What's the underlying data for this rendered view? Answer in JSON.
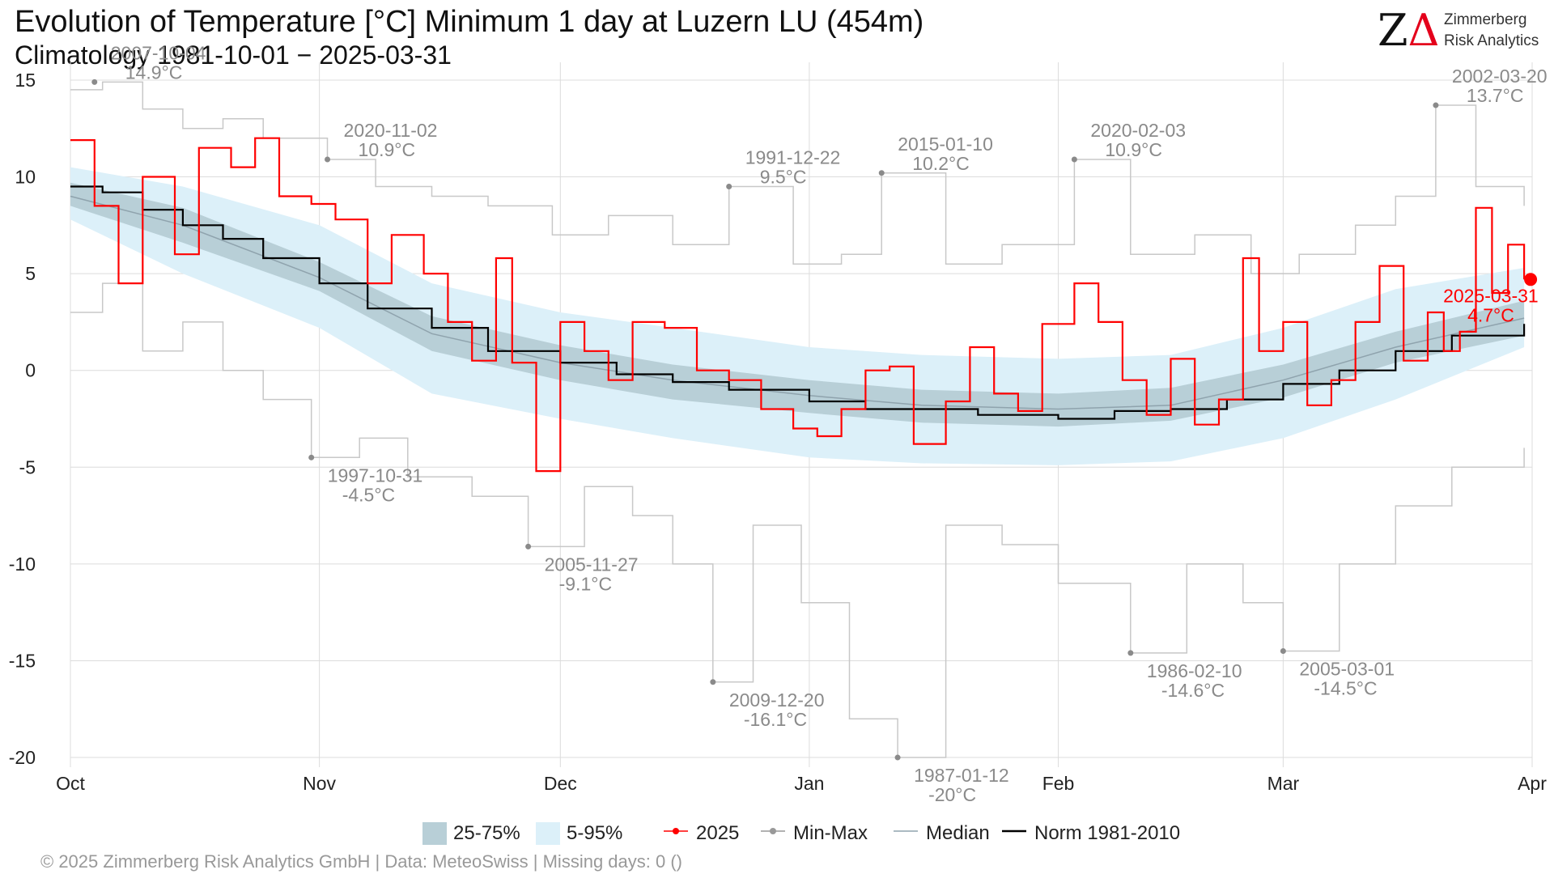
{
  "header": {
    "title": "Evolution of Temperature [°C] Minimum 1 day at Luzern  LU (454m)",
    "subtitle": "Climatology 1981-10-01 − 2025-03-31"
  },
  "logo": {
    "mark_z": "Z",
    "mark_delta": "Δ",
    "line1": "Zimmerberg",
    "line2": "Risk Analytics"
  },
  "footer": "©  2025 Zimmerberg Risk Analytics GmbH | Data: MeteoSwiss | Missing days: 0 ()",
  "colors": {
    "band_25_75": "#b8cfd7",
    "band_5_95": "#dcf0f9",
    "series_2025": "#ff0000",
    "minmax": "#c8c8c8",
    "median": "#8fa3ad",
    "norm": "#000000",
    "grid": "#dcdcdc"
  },
  "chart_data": {
    "type": "line",
    "x_axis": {
      "type": "date",
      "range": [
        "2024-10-01",
        "2025-04-01"
      ],
      "tick_dates": [
        "2024-10-01",
        "2024-11-01",
        "2024-12-01",
        "2025-01-01",
        "2025-02-01",
        "2025-03-01",
        "2025-04-01"
      ],
      "tick_labels": [
        "Oct",
        "Nov",
        "Dec",
        "Jan",
        "Feb",
        "Mar",
        "Apr"
      ]
    },
    "y_axis": {
      "range": [
        -20.5,
        15.5
      ],
      "ticks": [
        -20,
        -15,
        -10,
        -5,
        0,
        5,
        10,
        15
      ],
      "tick_labels": [
        "-20",
        "-15",
        "-10",
        "-5",
        "0",
        "5",
        "10",
        "15"
      ]
    },
    "grid": true,
    "legend_position": "bottom",
    "legend": [
      "25-75%",
      "5-95%",
      "2025",
      "Min-Max",
      "Median",
      "Norm 1981-2010"
    ],
    "series": {
      "current": {
        "name": "2025",
        "x": [
          "2024-10-01",
          "2024-10-04",
          "2024-10-07",
          "2024-10-10",
          "2024-10-14",
          "2024-10-17",
          "2024-10-21",
          "2024-10-24",
          "2024-10-27",
          "2024-10-31",
          "2024-11-03",
          "2024-11-07",
          "2024-11-10",
          "2024-11-14",
          "2024-11-17",
          "2024-11-20",
          "2024-11-23",
          "2024-11-25",
          "2024-11-28",
          "2024-12-01",
          "2024-12-04",
          "2024-12-07",
          "2024-12-10",
          "2024-12-14",
          "2024-12-18",
          "2024-12-22",
          "2024-12-26",
          "2024-12-30",
          "2025-01-02",
          "2025-01-05",
          "2025-01-08",
          "2025-01-11",
          "2025-01-14",
          "2025-01-18",
          "2025-01-21",
          "2025-01-24",
          "2025-01-27",
          "2025-01-30",
          "2025-02-03",
          "2025-02-06",
          "2025-02-09",
          "2025-02-12",
          "2025-02-15",
          "2025-02-18",
          "2025-02-21",
          "2025-02-24",
          "2025-02-26",
          "2025-03-01",
          "2025-03-04",
          "2025-03-07",
          "2025-03-10",
          "2025-03-13",
          "2025-03-16",
          "2025-03-19",
          "2025-03-21",
          "2025-03-23",
          "2025-03-25",
          "2025-03-27",
          "2025-03-29",
          "2025-03-31"
        ],
        "y": [
          11.9,
          8.5,
          4.5,
          10.0,
          6.0,
          11.5,
          10.5,
          12.0,
          9.0,
          8.6,
          7.8,
          4.5,
          7.0,
          5.0,
          2.5,
          0.5,
          5.8,
          0.4,
          -5.2,
          2.5,
          1.0,
          -0.5,
          2.5,
          2.2,
          0.0,
          -0.5,
          -2.0,
          -3.0,
          -3.4,
          -2.0,
          0.0,
          0.2,
          -3.8,
          -1.6,
          1.2,
          -1.2,
          -2.1,
          2.4,
          4.5,
          2.5,
          -0.5,
          -2.3,
          0.6,
          -2.8,
          -1.5,
          5.8,
          1.0,
          2.5,
          -1.8,
          -0.5,
          2.5,
          5.4,
          0.5,
          3.0,
          1.0,
          2.0,
          8.4,
          4.0,
          6.5,
          4.7
        ]
      },
      "min_max_annotations": [
        {
          "date": "2007-10-04",
          "value": 14.9,
          "label_date": "2007-10-04",
          "label_value": "14.9°C",
          "x": "2024-10-04"
        },
        {
          "date": "2020-11-02",
          "value": 10.9,
          "label_date": "2020-11-02",
          "label_value": "10.9°C",
          "x": "2024-11-02"
        },
        {
          "date": "1991-12-22",
          "value": 9.5,
          "label_date": "1991-12-22",
          "label_value": "9.5°C",
          "x": "2024-12-22"
        },
        {
          "date": "2015-01-10",
          "value": 10.2,
          "label_date": "2015-01-10",
          "label_value": "10.2°C",
          "x": "2025-01-10"
        },
        {
          "date": "2020-02-03",
          "value": 10.9,
          "label_date": "2020-02-03",
          "label_value": "10.9°C",
          "x": "2025-02-03"
        },
        {
          "date": "2002-03-20",
          "value": 13.7,
          "label_date": "2002-03-20",
          "label_value": "13.7°C",
          "x": "2025-03-20"
        },
        {
          "date": "1997-10-31",
          "value": -4.5,
          "label_date": "1997-10-31",
          "label_value": "-4.5°C",
          "x": "2024-10-31"
        },
        {
          "date": "2005-11-27",
          "value": -9.1,
          "label_date": "2005-11-27",
          "label_value": "-9.1°C",
          "x": "2024-11-27"
        },
        {
          "date": "2009-12-20",
          "value": -16.1,
          "label_date": "2009-12-20",
          "label_value": "-16.1°C",
          "x": "2024-12-20"
        },
        {
          "date": "1987-01-12",
          "value": -20,
          "label_date": "1987-01-12",
          "label_value": "-20°C",
          "x": "2025-01-12"
        },
        {
          "date": "1986-02-10",
          "value": -14.6,
          "label_date": "1986-02-10",
          "label_value": "-14.6°C",
          "x": "2025-02-10"
        },
        {
          "date": "2005-03-01",
          "value": -14.5,
          "label_date": "2005-03-01",
          "label_value": "-14.5°C",
          "x": "2025-03-01"
        }
      ],
      "current_annotation": {
        "label_date": "2025-03-31",
        "label_value": "4.7°C",
        "value": 4.7,
        "x": "2025-03-31"
      },
      "max": {
        "name": "Max",
        "x": [
          "2024-10-01",
          "2024-10-05",
          "2024-10-10",
          "2024-10-15",
          "2024-10-20",
          "2024-10-25",
          "2024-11-02",
          "2024-11-08",
          "2024-11-15",
          "2024-11-22",
          "2024-11-30",
          "2024-12-07",
          "2024-12-15",
          "2024-12-22",
          "2024-12-30",
          "2025-01-05",
          "2025-01-10",
          "2025-01-18",
          "2025-01-25",
          "2025-02-03",
          "2025-02-10",
          "2025-02-18",
          "2025-02-25",
          "2025-03-03",
          "2025-03-10",
          "2025-03-15",
          "2025-03-20",
          "2025-03-25",
          "2025-03-31"
        ],
        "y": [
          14.5,
          14.9,
          13.5,
          12.5,
          13.0,
          12.0,
          10.9,
          9.5,
          9.0,
          8.5,
          7.0,
          8.0,
          6.5,
          9.5,
          5.5,
          6.0,
          10.2,
          5.5,
          6.5,
          10.9,
          6.0,
          7.0,
          5.0,
          6.0,
          7.5,
          9.0,
          13.7,
          9.5,
          8.5
        ]
      },
      "min": {
        "name": "Min",
        "x": [
          "2024-10-01",
          "2024-10-05",
          "2024-10-10",
          "2024-10-15",
          "2024-10-20",
          "2024-10-25",
          "2024-10-31",
          "2024-11-06",
          "2024-11-12",
          "2024-11-20",
          "2024-11-27",
          "2024-12-04",
          "2024-12-10",
          "2024-12-15",
          "2024-12-20",
          "2024-12-25",
          "2024-12-31",
          "2025-01-06",
          "2025-01-12",
          "2025-01-18",
          "2025-01-25",
          "2025-02-01",
          "2025-02-10",
          "2025-02-17",
          "2025-02-24",
          "2025-03-01",
          "2025-03-08",
          "2025-03-15",
          "2025-03-22",
          "2025-03-31"
        ],
        "y": [
          3.0,
          4.5,
          1.0,
          2.5,
          0.0,
          -1.5,
          -4.5,
          -3.5,
          -5.5,
          -6.5,
          -9.1,
          -6.0,
          -7.5,
          -10.0,
          -16.1,
          -8.0,
          -12.0,
          -18.0,
          -20.0,
          -8.0,
          -9.0,
          -11.0,
          -14.6,
          -10.0,
          -12.0,
          -14.5,
          -10.0,
          -7.0,
          -5.0,
          -4.0
        ]
      },
      "bands": {
        "x": [
          "2024-10-01",
          "2024-10-15",
          "2024-11-01",
          "2024-11-15",
          "2024-12-01",
          "2024-12-15",
          "2025-01-01",
          "2025-01-15",
          "2025-02-01",
          "2025-02-15",
          "2025-03-01",
          "2025-03-15",
          "2025-03-31"
        ],
        "p5": [
          7.8,
          5.0,
          2.2,
          -1.2,
          -2.5,
          -3.5,
          -4.5,
          -4.8,
          -4.9,
          -4.7,
          -3.5,
          -1.5,
          1.2
        ],
        "p25": [
          8.5,
          6.6,
          4.1,
          1.0,
          -0.5,
          -1.5,
          -2.2,
          -2.7,
          -2.9,
          -2.6,
          -1.4,
          0.4,
          1.8
        ],
        "p75": [
          9.7,
          8.4,
          5.6,
          2.8,
          1.3,
          0.3,
          -0.5,
          -1.0,
          -1.2,
          -0.9,
          0.3,
          2.0,
          3.6
        ],
        "p95": [
          10.5,
          9.5,
          7.5,
          4.5,
          3.0,
          2.2,
          1.2,
          0.8,
          0.6,
          0.8,
          2.2,
          4.2,
          5.3
        ],
        "median": [
          9.0,
          7.5,
          4.8,
          1.9,
          0.4,
          -0.5,
          -1.3,
          -1.8,
          -2.0,
          -1.8,
          -0.5,
          1.2,
          2.7
        ]
      },
      "norm": {
        "name": "Norm 1981-2010",
        "x": [
          "2024-10-01",
          "2024-10-05",
          "2024-10-10",
          "2024-10-15",
          "2024-10-20",
          "2024-10-25",
          "2024-11-01",
          "2024-11-07",
          "2024-11-15",
          "2024-11-22",
          "2024-12-01",
          "2024-12-08",
          "2024-12-15",
          "2024-12-22",
          "2025-01-01",
          "2025-01-08",
          "2025-01-15",
          "2025-01-22",
          "2025-02-01",
          "2025-02-08",
          "2025-02-15",
          "2025-02-22",
          "2025-03-01",
          "2025-03-08",
          "2025-03-15",
          "2025-03-22",
          "2025-03-31"
        ],
        "y": [
          9.5,
          9.2,
          8.3,
          7.5,
          6.8,
          5.8,
          4.5,
          3.2,
          2.2,
          1.0,
          0.4,
          -0.2,
          -0.6,
          -1.0,
          -1.6,
          -2.0,
          -2.0,
          -2.3,
          -2.5,
          -2.1,
          -2.0,
          -1.5,
          -0.7,
          0.0,
          1.0,
          1.8,
          2.4
        ]
      }
    }
  },
  "legend": {
    "items": [
      {
        "label": "25-75%",
        "kind": "fill",
        "color": "#b8cfd7"
      },
      {
        "label": "5-95%",
        "kind": "fill",
        "color": "#dcf0f9"
      },
      {
        "label": "2025",
        "kind": "line-dot",
        "color": "#ff0000"
      },
      {
        "label": "Min-Max",
        "kind": "line-dot",
        "color": "#999999"
      },
      {
        "label": "Median",
        "kind": "line",
        "color": "#8fa3ad"
      },
      {
        "label": "Norm 1981-2010",
        "kind": "line",
        "color": "#000000"
      }
    ]
  }
}
